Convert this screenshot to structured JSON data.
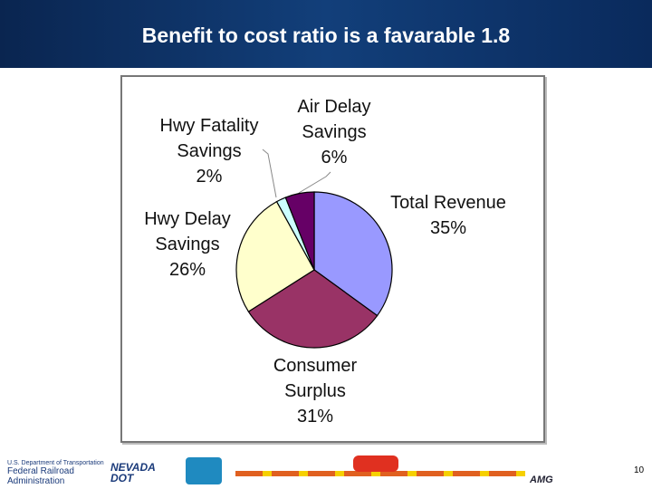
{
  "chart_data": {
    "type": "pie",
    "title": "Benefit to cost ratio is a favarable 1.8",
    "categories": [
      "Total Revenue",
      "Consumer Surplus",
      "Hwy Delay Savings",
      "Hwy Fatality Savings",
      "Air Delay Savings"
    ],
    "values": [
      35,
      31,
      26,
      2,
      6
    ],
    "value_labels": [
      "35%",
      "31%",
      "26%",
      "2%",
      "6%"
    ],
    "colors": [
      "#9999ff",
      "#993366",
      "#ffffcc",
      "#ccffff",
      "#660066"
    ]
  },
  "footer": {
    "agency_line": "U.S. Department of Transportation",
    "agency": "Federal Railroad Administration",
    "state": "NEVADA DOT",
    "firm": "AMG",
    "page_number": "10"
  }
}
